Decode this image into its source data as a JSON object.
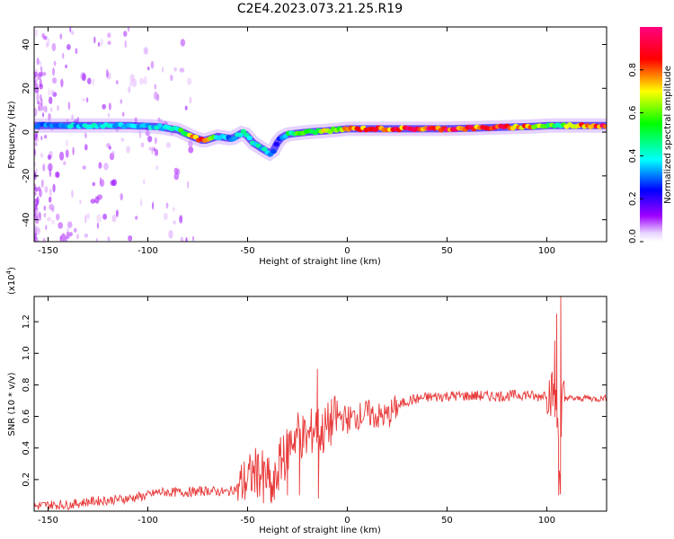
{
  "title": "C2E4.2023.073.21.25.R19",
  "chart_data": [
    {
      "type": "heatmap",
      "xlabel": "Height of straight line (km)",
      "ylabel": "Frequency (Hz)",
      "xlim": [
        -157,
        130
      ],
      "ylim": [
        -50,
        48
      ],
      "xticks": [
        -150,
        -100,
        -50,
        0,
        50,
        100
      ],
      "yticks": [
        -40,
        -20,
        0,
        20,
        40
      ],
      "colorbar": {
        "label": "Normalized spectral amplitude",
        "range": [
          0,
          1
        ],
        "ticks": [
          0.0,
          0.2,
          0.4,
          0.6,
          0.8
        ],
        "colormap": [
          "#ffffff",
          "#9f00ff",
          "#0000ff",
          "#00ffff",
          "#00ff00",
          "#ffff00",
          "#ff0000",
          "#ff0080"
        ]
      },
      "ridge": {
        "x": [
          -157,
          -140,
          -125,
          -110,
          -95,
          -85,
          -78,
          -72,
          -65,
          -58,
          -52,
          -47,
          -42,
          -38,
          -34,
          -30,
          -25,
          -20,
          -12,
          -5,
          0,
          5,
          15,
          30,
          50,
          70,
          90,
          102,
          106,
          115,
          130
        ],
        "y": [
          3,
          3,
          3,
          3,
          2.5,
          1,
          -2,
          -4,
          -2,
          -3,
          0,
          -5,
          -8,
          -10,
          -3,
          -1,
          -0.5,
          0,
          0.5,
          1,
          1.5,
          1.5,
          1.5,
          1.5,
          1.5,
          2,
          2.5,
          3,
          3,
          3,
          3
        ],
        "amplitude": [
          0.35,
          0.42,
          0.45,
          0.45,
          0.45,
          0.5,
          0.75,
          0.85,
          0.5,
          0.35,
          0.55,
          0.45,
          0.45,
          0.35,
          0.3,
          0.55,
          0.6,
          0.6,
          0.7,
          0.7,
          0.75,
          0.8,
          0.85,
          0.9,
          0.92,
          0.88,
          0.85,
          0.6,
          0.5,
          0.85,
          0.9
        ]
      }
    },
    {
      "type": "line",
      "xlabel": "Height of straight line (km)",
      "ylabel": "SNR (10 * v/v)",
      "multiplier": "(x10",
      "multiplier_exp": "4",
      "multiplier_close": ")",
      "xlim": [
        -157,
        130
      ],
      "ylim": [
        0,
        1.36
      ],
      "xticks": [
        -150,
        -100,
        -50,
        0,
        50,
        100
      ],
      "yticks": [
        0.2,
        0.4,
        0.6,
        0.8,
        1.0,
        1.2
      ],
      "color": "#e83a3a",
      "series": [
        {
          "x": [
            -157,
            -150,
            -140,
            -130,
            -120,
            -110,
            -100,
            -95,
            -90,
            -80,
            -70,
            -60,
            -55,
            -50,
            -46,
            -43,
            -40,
            -37,
            -34,
            -31,
            -28,
            -25,
            -20,
            -16,
            -14,
            -12,
            -8,
            -4,
            0,
            5,
            10,
            15,
            20,
            25,
            30,
            40,
            50,
            60,
            70,
            80,
            90,
            95,
            100,
            103,
            104,
            105,
            106,
            106.5,
            107,
            107.5,
            108,
            110,
            115,
            120,
            125,
            130
          ],
          "y": [
            0.03,
            0.04,
            0.04,
            0.06,
            0.07,
            0.08,
            0.1,
            0.12,
            0.12,
            0.12,
            0.13,
            0.12,
            0.15,
            0.2,
            0.25,
            0.23,
            0.2,
            0.12,
            0.3,
            0.35,
            0.45,
            0.5,
            0.45,
            0.55,
            0.5,
            0.5,
            0.56,
            0.6,
            0.58,
            0.6,
            0.62,
            0.6,
            0.6,
            0.66,
            0.7,
            0.72,
            0.73,
            0.73,
            0.73,
            0.73,
            0.74,
            0.72,
            0.75,
            0.75,
            0.7,
            0.6,
            0.5,
            0.25,
            0.15,
            0.65,
            0.7,
            0.72,
            0.71,
            0.72,
            0.71,
            0.72
          ]
        }
      ],
      "spikes": [
        {
          "x": -49,
          "y": 0.32
        },
        {
          "x": -45,
          "y": 0.35
        },
        {
          "x": -42,
          "y": 0.05
        },
        {
          "x": -38,
          "y": 0.05
        },
        {
          "x": -32,
          "y": 0.48
        },
        {
          "x": -30,
          "y": 0.1
        },
        {
          "x": -25,
          "y": 0.55
        },
        {
          "x": -24,
          "y": 0.1
        },
        {
          "x": -15,
          "y": 0.9
        },
        {
          "x": -14.5,
          "y": 0.08
        },
        {
          "x": 104,
          "y": 1.08
        },
        {
          "x": 105,
          "y": 1.25
        },
        {
          "x": 106,
          "y": 0.1
        },
        {
          "x": 107,
          "y": 1.36
        }
      ]
    }
  ]
}
